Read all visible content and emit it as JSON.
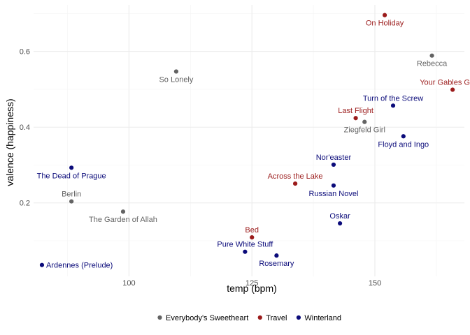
{
  "chart_data": {
    "type": "scatter",
    "title": "",
    "xlabel": "temp (bpm)",
    "ylabel": "valence (happiness)",
    "xlim": [
      80.6,
      168.2
    ],
    "ylim": [
      0.006,
      0.723
    ],
    "xticks": [
      100,
      125,
      150
    ],
    "xticks_minor": [
      87.5,
      112.5,
      137.5,
      162.5
    ],
    "yticks": [
      0.2,
      0.4,
      0.6
    ],
    "yticks_minor": [
      0.1,
      0.3,
      0.5,
      0.7
    ],
    "grid": true,
    "legend_position": "bottom",
    "series": [
      {
        "name": "Everybody's Sweetheart",
        "color": "#636363",
        "points": [
          {
            "label": "Berlin",
            "x": 88.3,
            "y": 0.204,
            "pos": "top"
          },
          {
            "label": "The Garden of Allah",
            "x": 98.8,
            "y": 0.177,
            "pos": "bottom"
          },
          {
            "label": "So Lonely",
            "x": 109.6,
            "y": 0.547,
            "pos": "bottom"
          },
          {
            "label": "Ziegfeld Girl",
            "x": 147.9,
            "y": 0.414,
            "pos": "bottom"
          },
          {
            "label": "Rebecca",
            "x": 161.6,
            "y": 0.589,
            "pos": "bottom"
          }
        ]
      },
      {
        "name": "Travel",
        "color": "#9b1b1b",
        "points": [
          {
            "label": "Bed",
            "x": 125.0,
            "y": 0.109,
            "pos": "top"
          },
          {
            "label": "Across the Lake",
            "x": 133.8,
            "y": 0.251,
            "pos": "top"
          },
          {
            "label": "Last Flight",
            "x": 146.1,
            "y": 0.424,
            "pos": "top"
          },
          {
            "label": "On Holiday",
            "x": 152.0,
            "y": 0.696,
            "pos": "bottom"
          },
          {
            "label": "Your Gables Green",
            "x": 165.8,
            "y": 0.499,
            "pos": "top"
          }
        ]
      },
      {
        "name": "Winterland",
        "color": "#0b0b7a",
        "points": [
          {
            "label": "Ardennes (Prelude)",
            "x": 82.3,
            "y": 0.036,
            "pos": "right"
          },
          {
            "label": "The Dead of Prague",
            "x": 88.3,
            "y": 0.293,
            "pos": "bottom"
          },
          {
            "label": "Pure White Stuff",
            "x": 123.6,
            "y": 0.071,
            "pos": "top"
          },
          {
            "label": "Rosemary",
            "x": 130.0,
            "y": 0.061,
            "pos": "bottom"
          },
          {
            "label": "Nor'easter",
            "x": 141.6,
            "y": 0.301,
            "pos": "top"
          },
          {
            "label": "Russian Novel",
            "x": 141.6,
            "y": 0.246,
            "pos": "bottom"
          },
          {
            "label": "Oskar",
            "x": 142.9,
            "y": 0.146,
            "pos": "top"
          },
          {
            "label": "Turn of the Screw",
            "x": 153.7,
            "y": 0.457,
            "pos": "top"
          },
          {
            "label": "Floyd and Ingo",
            "x": 155.8,
            "y": 0.376,
            "pos": "bottom"
          }
        ]
      }
    ]
  }
}
